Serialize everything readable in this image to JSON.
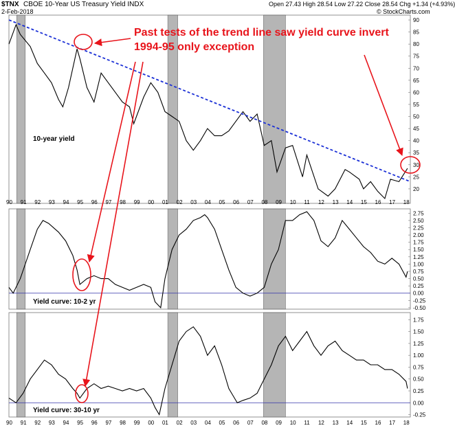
{
  "header": {
    "symbol": "$TNX",
    "description": "CBOE 10-Year US Treasury Yield INDX",
    "date": "2-Feb-2018",
    "ohlc": "Open 27.43  High 28.54  Low 27.22  Close 28.54  Chg +1.34 (+4.93%)",
    "brand": "© StockCharts.com"
  },
  "annotation": {
    "line1": "Past tests of the trend line saw yield curve invert",
    "line2": "1994-95 only exception"
  },
  "colors": {
    "price_line": "#000000",
    "trend_line": "#1a2fd6",
    "annotation": "#e8141b",
    "recession": "#a9a9a9",
    "zero_line": "#3333aa"
  },
  "chart_data": [
    {
      "type": "line",
      "panel": "10-year yield",
      "label": "10-year yield",
      "x_ticks": [
        "90",
        "91",
        "92",
        "93",
        "94",
        "95",
        "96",
        "97",
        "98",
        "99",
        "00",
        "01",
        "02",
        "03",
        "04",
        "05",
        "06",
        "07",
        "08",
        "09",
        "10",
        "11",
        "12",
        "13",
        "14",
        "15",
        "16",
        "17",
        "18"
      ],
      "y_ticks": [
        20,
        25,
        30,
        35,
        40,
        45,
        50,
        55,
        60,
        65,
        70,
        75,
        80,
        85,
        90
      ],
      "ylim": [
        14,
        92
      ],
      "x": [
        1990.0,
        1990.5,
        1990.8,
        1991.5,
        1992.0,
        1992.5,
        1993.0,
        1993.5,
        1993.8,
        1994.2,
        1994.8,
        1995.0,
        1995.5,
        1996.0,
        1996.5,
        1997.0,
        1997.5,
        1998.0,
        1998.5,
        1998.8,
        1999.5,
        2000.0,
        2000.5,
        2001.0,
        2001.5,
        2002.0,
        2002.5,
        2003.0,
        2003.5,
        2004.0,
        2004.5,
        2005.0,
        2005.5,
        2006.0,
        2006.5,
        2007.0,
        2007.5,
        2008.0,
        2008.5,
        2008.9,
        2009.5,
        2010.0,
        2010.7,
        2011.0,
        2011.8,
        2012.5,
        2013.0,
        2013.7,
        2014.0,
        2014.7,
        2015.0,
        2015.5,
        2016.0,
        2016.5,
        2016.9,
        2017.5,
        2018.1
      ],
      "values": [
        80,
        88,
        84,
        79,
        72,
        68,
        64,
        57,
        54,
        62,
        78,
        74,
        62,
        56,
        68,
        64,
        60,
        56,
        54,
        47,
        58,
        64,
        60,
        52,
        50,
        48,
        40,
        36,
        40,
        45,
        42,
        42,
        44,
        48,
        52,
        48,
        51,
        38,
        40,
        27,
        37,
        38,
        25,
        34,
        20,
        17,
        20,
        28,
        27,
        24,
        20,
        23,
        19,
        16,
        24,
        23,
        28.5
      ],
      "trend_line": {
        "x": [
          1990.0,
          2018.3
        ],
        "values": [
          90,
          23
        ]
      },
      "recessions": [
        [
          1990.55,
          1991.15
        ],
        [
          2001.2,
          2001.9
        ],
        [
          2007.95,
          2009.5
        ]
      ]
    },
    {
      "type": "line",
      "panel": "Yield curve: 10-2 yr",
      "label": "Yield curve: 10-2 yr",
      "y_ticks": [
        -0.5,
        -0.25,
        0,
        0.25,
        0.5,
        0.75,
        1,
        1.25,
        1.5,
        1.75,
        2,
        2.25,
        2.5,
        2.75
      ],
      "ylim": [
        -0.55,
        2.9
      ],
      "x": [
        1990.0,
        1990.3,
        1990.8,
        1991.5,
        1992.0,
        1992.4,
        1992.8,
        1993.5,
        1994.0,
        1994.5,
        1994.8,
        1995.0,
        1995.5,
        1996.0,
        1996.5,
        1997.0,
        1997.5,
        1998.0,
        1998.5,
        1999.0,
        1999.5,
        2000.0,
        2000.3,
        2000.7,
        2001.0,
        2001.5,
        2002.0,
        2002.5,
        2003.0,
        2003.5,
        2003.8,
        2004.0,
        2004.5,
        2005.0,
        2005.5,
        2006.0,
        2006.5,
        2007.0,
        2007.5,
        2008.0,
        2008.5,
        2009.0,
        2009.5,
        2010.0,
        2010.5,
        2011.0,
        2011.5,
        2012.0,
        2012.5,
        2013.0,
        2013.5,
        2014.0,
        2014.5,
        2015.0,
        2015.5,
        2016.0,
        2016.5,
        2017.0,
        2017.5,
        2018.0,
        2018.1
      ],
      "values": [
        0.2,
        0.0,
        0.5,
        1.5,
        2.2,
        2.5,
        2.4,
        2.1,
        1.8,
        1.3,
        0.8,
        0.3,
        0.5,
        0.6,
        0.5,
        0.5,
        0.3,
        0.2,
        0.1,
        0.2,
        0.3,
        0.2,
        -0.3,
        -0.5,
        0.5,
        1.5,
        2.0,
        2.2,
        2.5,
        2.6,
        2.7,
        2.6,
        2.2,
        1.5,
        0.8,
        0.2,
        0.0,
        -0.1,
        0.0,
        0.2,
        1.0,
        1.5,
        2.5,
        2.5,
        2.7,
        2.8,
        2.5,
        1.8,
        1.6,
        1.9,
        2.5,
        2.2,
        1.9,
        1.6,
        1.4,
        1.1,
        1.0,
        1.2,
        1.0,
        0.55,
        0.75
      ],
      "zero_line": 0,
      "recessions": [
        [
          1990.55,
          1991.15
        ],
        [
          2001.2,
          2001.9
        ],
        [
          2007.95,
          2009.5
        ]
      ]
    },
    {
      "type": "line",
      "panel": "Yield curve: 30-10 yr",
      "label": "Yield curve: 30-10 yr",
      "y_ticks": [
        -0.25,
        0,
        0.25,
        0.5,
        0.75,
        1,
        1.25,
        1.5,
        1.75
      ],
      "ylim": [
        -0.3,
        1.9
      ],
      "x": [
        1990.0,
        1990.5,
        1991.0,
        1991.5,
        1992.0,
        1992.5,
        1993.0,
        1993.5,
        1994.0,
        1994.5,
        1994.8,
        1995.0,
        1995.5,
        1996.0,
        1996.5,
        1997.0,
        1997.5,
        1998.0,
        1998.5,
        1999.0,
        1999.5,
        2000.0,
        2000.3,
        2000.6,
        2001.0,
        2001.5,
        2002.0,
        2002.5,
        2003.0,
        2003.5,
        2004.0,
        2004.5,
        2005.0,
        2005.5,
        2005.9,
        2006.1,
        2006.5,
        2007.0,
        2007.5,
        2008.0,
        2008.5,
        2009.0,
        2009.5,
        2010.0,
        2010.5,
        2011.0,
        2011.5,
        2012.0,
        2012.5,
        2013.0,
        2013.5,
        2014.0,
        2014.5,
        2015.0,
        2015.5,
        2016.0,
        2016.5,
        2017.0,
        2017.5,
        2018.0,
        2018.1
      ],
      "values": [
        0.1,
        0.0,
        0.2,
        0.5,
        0.7,
        0.9,
        0.8,
        0.6,
        0.5,
        0.3,
        0.2,
        0.1,
        0.3,
        0.4,
        0.3,
        0.35,
        0.3,
        0.25,
        0.3,
        0.25,
        0.3,
        0.1,
        -0.1,
        -0.25,
        0.3,
        0.8,
        1.3,
        1.5,
        1.6,
        1.4,
        1.0,
        1.2,
        0.8,
        0.3,
        0.1,
        0.0,
        0.05,
        0.1,
        0.2,
        0.5,
        0.8,
        1.2,
        1.4,
        1.1,
        1.3,
        1.5,
        1.2,
        1.0,
        1.2,
        1.3,
        1.1,
        1.0,
        0.9,
        0.9,
        0.8,
        0.8,
        0.7,
        0.7,
        0.6,
        0.45,
        0.3
      ],
      "zero_line": 0,
      "recessions": [
        [
          1990.55,
          1991.15
        ],
        [
          2001.2,
          2001.9
        ],
        [
          2007.95,
          2009.5
        ]
      ]
    }
  ]
}
